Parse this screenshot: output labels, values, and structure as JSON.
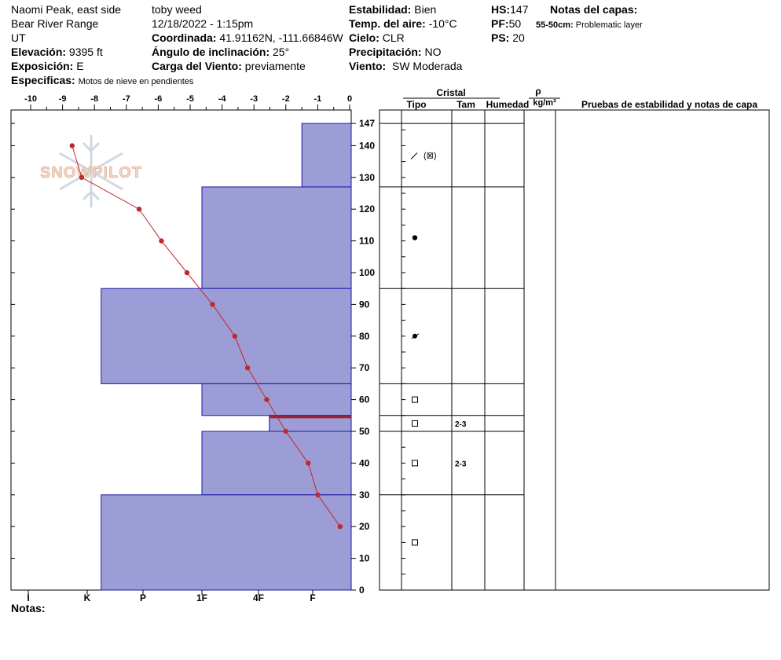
{
  "header": {
    "location": "Naomi Peak, east side",
    "range": "Bear River Range",
    "state": "UT",
    "elevation_label": "Elevación:",
    "elevation": "9395 ft",
    "aspect_label": "Exposición:",
    "aspect": "E",
    "specifics_label": "Especificas:",
    "specifics": "Motos de nieve en pendientes",
    "observer": "toby weed",
    "datetime": "12/18/2022 - 1:15pm",
    "coord_label": "Coordinada:",
    "coord": "41.91162N, -111.66846W",
    "slope_label": "Ángulo de inclinación:",
    "slope": "25°",
    "wind_load_label": "Carga del Viento:",
    "wind_load": "previamente",
    "stability_label": "Estabilidad:",
    "stability": "Bien",
    "air_temp_label": "Temp. del aire:",
    "air_temp": "-10°C",
    "sky_label": "Cielo:",
    "sky": "CLR",
    "precip_label": "Precipitación:",
    "precip": "NO",
    "wind_label": "Viento:",
    "wind": "SW Moderada",
    "hs_label": "HS:",
    "hs": "147",
    "pf_label": "PF:",
    "pf": "50",
    "ps_label": "PS:",
    "ps": "20",
    "layer_notes_title": "Notas del capas:",
    "layer_note_depth": "55-50cm:",
    "layer_note_text": "Problematic layer"
  },
  "notes_label": "Notas:",
  "watermark": "SNOWPILOT",
  "table_headers": {
    "cristal": "Cristal",
    "tipo": "Tipo",
    "tam": "Tam",
    "humedad": "Humedad",
    "rho": "ρ",
    "density_unit": "kg/m³",
    "tests": "Pruebas de estabilidad y notas de capa"
  },
  "colors": {
    "hardness_fill": "#9c9cd6",
    "hardness_stroke": "#1a1aa6",
    "temp_line": "#c0282a",
    "weak_layer": "#a0202a"
  },
  "chart_data": {
    "type": "area",
    "temp_axis": {
      "ticks": [
        -10,
        -9,
        -8,
        -7,
        -6,
        -5,
        -4,
        -3,
        -2,
        -1,
        0
      ],
      "range": [
        -10.6,
        0
      ]
    },
    "height_axis": {
      "ticks": [
        0,
        10,
        20,
        30,
        40,
        50,
        60,
        70,
        80,
        90,
        100,
        110,
        120,
        130,
        140,
        147
      ],
      "range": [
        0,
        147
      ]
    },
    "hardness_axis": {
      "labels": [
        "I",
        "K",
        "P",
        "1F",
        "4F",
        "F"
      ],
      "values": [
        6,
        5,
        4,
        3,
        2,
        1
      ]
    },
    "temperature_profile": [
      {
        "height": 140,
        "temp": -8.7
      },
      {
        "height": 130,
        "temp": -8.4
      },
      {
        "height": 120,
        "temp": -6.6
      },
      {
        "height": 110,
        "temp": -5.9
      },
      {
        "height": 100,
        "temp": -5.1
      },
      {
        "height": 90,
        "temp": -4.3
      },
      {
        "height": 80,
        "temp": -3.6
      },
      {
        "height": 70,
        "temp": -3.2
      },
      {
        "height": 60,
        "temp": -2.6
      },
      {
        "height": 50,
        "temp": -2.0
      },
      {
        "height": 40,
        "temp": -1.3
      },
      {
        "height": 30,
        "temp": -1.0
      },
      {
        "height": 20,
        "temp": -0.3
      }
    ],
    "layers": [
      {
        "top": 147,
        "bottom": 127,
        "hardness": 1.2,
        "grain": "fragment",
        "size": ""
      },
      {
        "top": 127,
        "bottom": 95,
        "hardness": 3.0,
        "grain": "graupel",
        "size": ""
      },
      {
        "top": 95,
        "bottom": 65,
        "hardness": 4.75,
        "grain": "rounded-faceted",
        "size": ""
      },
      {
        "top": 65,
        "bottom": 55,
        "hardness": 3.0,
        "grain": "faceted",
        "size": ""
      },
      {
        "top": 55,
        "bottom": 50,
        "hardness": 1.8,
        "grain": "faceted",
        "size": "2-3"
      },
      {
        "top": 50,
        "bottom": 30,
        "hardness": 3.0,
        "grain": "faceted",
        "size": "2-3"
      },
      {
        "top": 30,
        "bottom": 0,
        "hardness": 4.75,
        "grain": "faceted",
        "size": ""
      }
    ],
    "weak_layer_height": 54.5
  }
}
